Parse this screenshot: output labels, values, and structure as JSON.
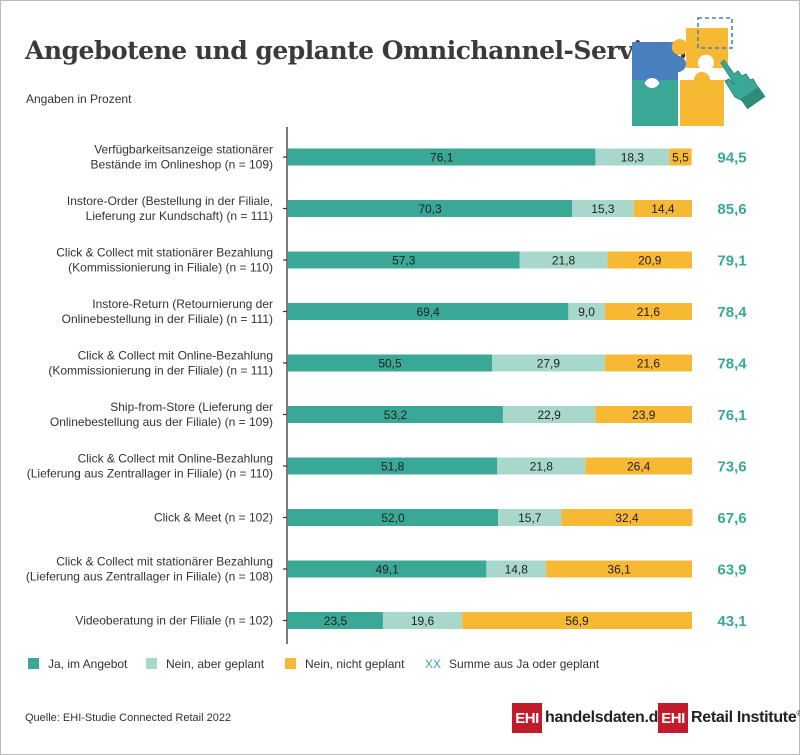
{
  "header": {
    "title": "Angebotene und geplante Omnichannel-Services",
    "subtitle": "Angaben in Prozent"
  },
  "colors": {
    "ja": "#3aa896",
    "geplant": "#a8d8cc",
    "nicht": "#f7b834",
    "sum": "#3aa896"
  },
  "chart_data": {
    "type": "bar",
    "orientation": "horizontal",
    "stacked": true,
    "xlim": [
      0,
      100
    ],
    "categories": [
      [
        "Verfügbarkeitsanzeige stationärer",
        "Bestände im Onlineshop (n = 109)"
      ],
      [
        "Instore-Order (Bestellung in der Filiale,",
        "Lieferung zur Kundschaft) (n = 111)"
      ],
      [
        "Click & Collect mit stationärer Bezahlung",
        "(Kommissionierung in Filiale) (n = 110)"
      ],
      [
        "Instore-Return (Retournierung der",
        "Onlinebestellung in der Filiale) (n = 111)"
      ],
      [
        "Click & Collect mit Online-Bezahlung",
        "(Kommissionierung in der Filiale) (n = 111)"
      ],
      [
        "Ship-from-Store (Lieferung der",
        "Onlinebestellung aus der Filiale) (n = 109)"
      ],
      [
        "Click & Collect mit Online-Bezahlung",
        "(Lieferung aus Zentrallager in Filiale) (n = 110)"
      ],
      [
        "Click & Meet (n = 102)"
      ],
      [
        "Click & Collect mit stationärer Bezahlung",
        "(Lieferung aus Zentrallager in Filiale) (n = 108)"
      ],
      [
        "Videoberatung in der Filiale (n = 102)"
      ]
    ],
    "series": [
      {
        "name": "Ja, im Angebot",
        "values": [
          "76,1",
          "70,3",
          "57,3",
          "69,4",
          "50,5",
          "53,2",
          "51,8",
          "52,0",
          "49,1",
          "23,5"
        ]
      },
      {
        "name": "Nein, aber geplant",
        "values": [
          "18,3",
          "15,3",
          "21,8",
          "9,0",
          "27,9",
          "22,9",
          "21,8",
          "15,7",
          "14,8",
          "19,6"
        ]
      },
      {
        "name": "Nein, nicht geplant",
        "values": [
          "5,5",
          "14,4",
          "20,9",
          "21,6",
          "21,6",
          "23,9",
          "26,4",
          "32,4",
          "36,1",
          "56,9"
        ]
      }
    ],
    "sums": [
      "94,5",
      "85,6",
      "79,1",
      "78,4",
      "78,4",
      "76,1",
      "73,6",
      "67,6",
      "63,9",
      "43,1"
    ]
  },
  "legend": {
    "ja": "Ja, im Angebot",
    "geplant": "Nein, aber geplant",
    "nicht": "Nein, nicht geplant",
    "sum_marker": "XX",
    "sum_label": "Summe aus Ja oder geplant"
  },
  "footer": {
    "source": "Quelle: EHI-Studie Connected Retail 2022",
    "logo1_box": "EHI",
    "logo1_text": "handelsdaten.de",
    "logo2_box": "EHI",
    "logo2_text": "Retail Institute",
    "logo2_reg": "®"
  }
}
